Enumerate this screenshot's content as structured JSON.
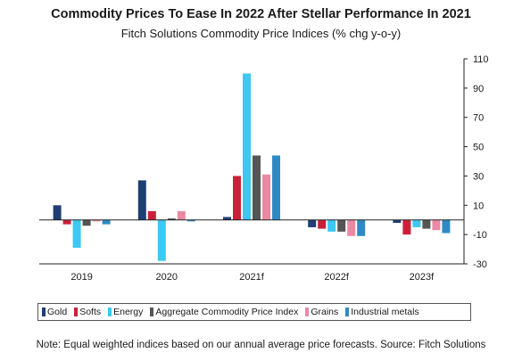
{
  "chart_data": {
    "type": "bar",
    "title": "Commodity Prices To Ease In 2022 After Stellar Performance In 2021",
    "subtitle": "Fitch Solutions Commodity Price Indices (% chg y-o-y)",
    "categories": [
      "2019",
      "2020",
      "2021f",
      "2022f",
      "2023f"
    ],
    "series": [
      {
        "name": "Gold",
        "color": "#1f3f73",
        "values": [
          10,
          27,
          2,
          -5,
          -2
        ]
      },
      {
        "name": "Softs",
        "color": "#cc1f3a",
        "values": [
          -3,
          6,
          30,
          -6,
          -10
        ]
      },
      {
        "name": "Energy",
        "color": "#3cc8f0",
        "values": [
          -19,
          -28,
          100,
          -8,
          -5
        ]
      },
      {
        "name": "Aggregate Commodity Price Index",
        "color": "#555555",
        "values": [
          -4,
          1,
          44,
          -8,
          -6
        ]
      },
      {
        "name": "Grains",
        "color": "#e98aa2",
        "values": [
          -1,
          6,
          31,
          -11,
          -7
        ]
      },
      {
        "name": "Industrial metals",
        "color": "#2f8ac4",
        "values": [
          -3,
          -1,
          44,
          -11,
          -9
        ]
      }
    ],
    "ylim": [
      -30,
      110
    ],
    "yticks": [
      -30,
      -10,
      10,
      30,
      50,
      70,
      90,
      110
    ],
    "grid": false,
    "legend_position": "bottom",
    "note": "Note: Equal weighted indices based on our annual average price forecasts. Source: Fitch Solutions"
  }
}
